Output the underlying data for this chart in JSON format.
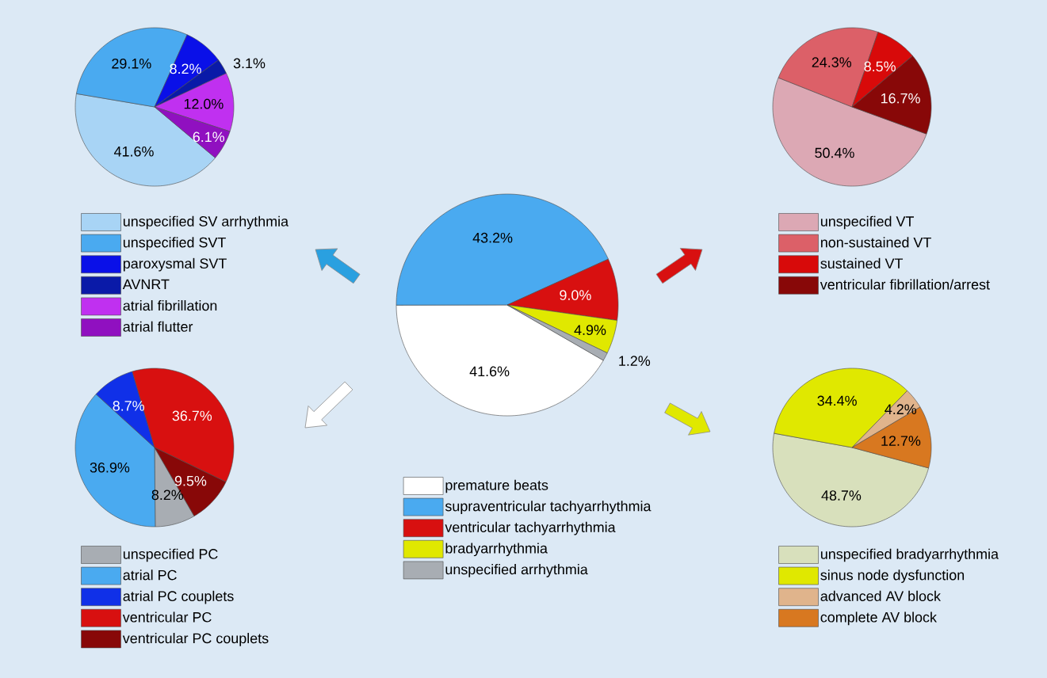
{
  "chart_data": [
    {
      "type": "pie",
      "categories": [
        "unspecified SV arrhythmia",
        "unspecified SVT",
        "paroxysmal SVT",
        "AVNRT",
        "atrial fibrillation",
        "atrial flutter"
      ],
      "values": [
        41.6,
        29.1,
        8.2,
        3.1,
        12.0,
        6.1
      ],
      "value_labels": [
        "41.6%",
        "29.1%",
        "8.2%",
        "3.1%",
        "12.0%",
        "6.1%"
      ],
      "colors": [
        "#a8d4f5",
        "#4aaaf0",
        "#0a10e8",
        "#0a1aa8",
        "#c030f0",
        "#9010c0"
      ],
      "legend": "bottom"
    },
    {
      "type": "pie",
      "categories": [
        "unspecified VT",
        "non-sustained VT",
        "sustained VT",
        "ventricular fibrillation/arrest"
      ],
      "values": [
        50.4,
        24.3,
        8.5,
        16.7
      ],
      "value_labels": [
        "50.4%",
        "24.3%",
        "8.5%",
        "16.7%"
      ],
      "colors": [
        "#dca8b4",
        "#dc6068",
        "#d80a0a",
        "#880808"
      ],
      "legend": "bottom"
    },
    {
      "type": "pie",
      "categories": [
        "premature beats",
        "supraventricular tachyarrhythmia",
        "ventricular tachyarrhythmia",
        "bradyarrhythmia",
        "unspecified arrhythmia"
      ],
      "values": [
        41.6,
        43.2,
        9.0,
        4.9,
        1.2
      ],
      "value_labels": [
        "41.6%",
        "43.2%",
        "9.0%",
        "4.9%",
        "1.2%"
      ],
      "colors": [
        "#ffffff",
        "#4aaaf0",
        "#d81010",
        "#e0e800",
        "#a8adb3"
      ],
      "legend": "bottom"
    },
    {
      "type": "pie",
      "categories": [
        "unspecified PC",
        "atrial PC",
        "atrial PC couplets",
        "ventricular PC",
        "ventricular PC couplets"
      ],
      "values": [
        8.2,
        36.9,
        8.7,
        36.7,
        9.5
      ],
      "value_labels": [
        "8.2%",
        "36.9%",
        "8.7%",
        "36.7%",
        "9.5%"
      ],
      "colors": [
        "#a8adb3",
        "#4aaaf0",
        "#1030e8",
        "#d81010",
        "#880808"
      ],
      "legend": "bottom"
    },
    {
      "type": "pie",
      "categories": [
        "unspecified bradyarrhythmia",
        "sinus node dysfunction",
        "advanced AV block",
        "complete AV block"
      ],
      "values": [
        48.7,
        34.4,
        4.2,
        12.7
      ],
      "value_labels": [
        "48.7%",
        "34.4%",
        "4.2%",
        "12.7%"
      ],
      "colors": [
        "#d8e0bc",
        "#e0e800",
        "#e0b48c",
        "#d87820"
      ],
      "legend": "bottom"
    }
  ]
}
